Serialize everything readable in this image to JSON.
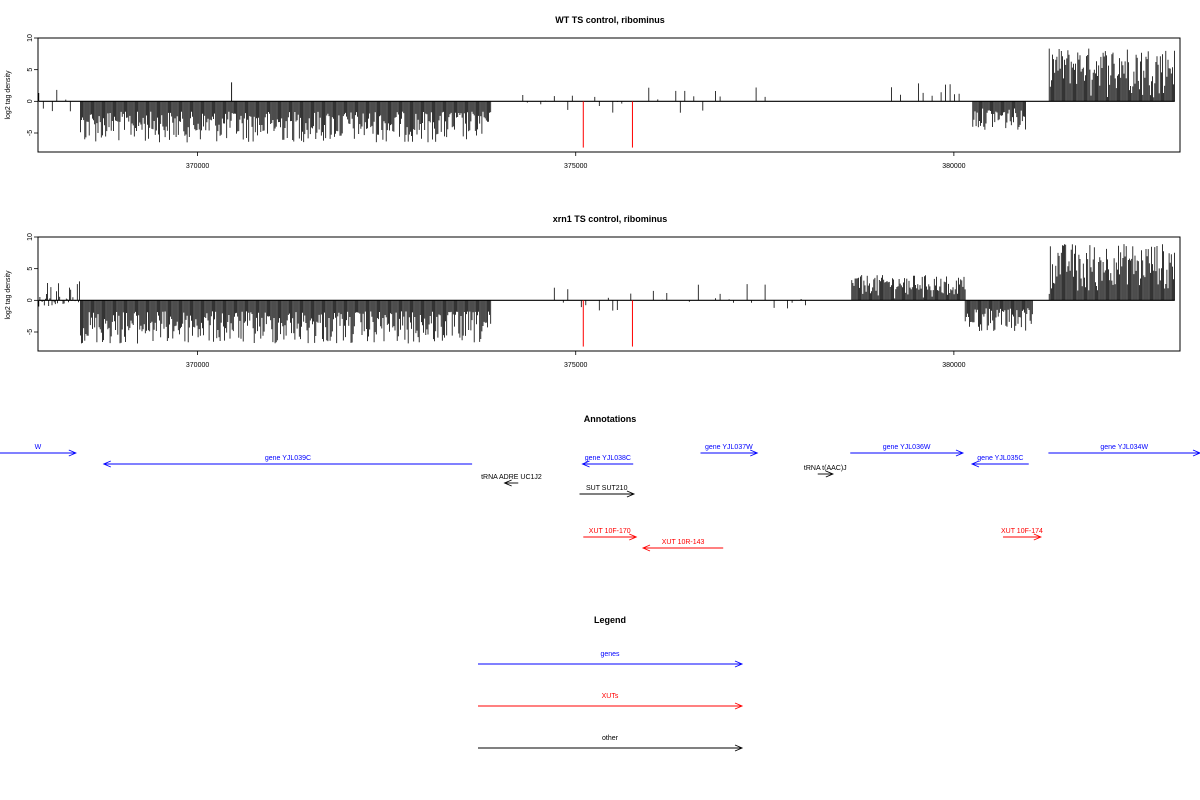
{
  "chart_data": [
    {
      "type": "bar",
      "title": "WT TS control, ribominus",
      "ylabel": "log2 tag density",
      "xlim": [
        367890,
        382990
      ],
      "ylim": [
        -8,
        10
      ],
      "yticks": [
        -5,
        0,
        5,
        10
      ],
      "xticks": [
        370000,
        375000,
        380000
      ],
      "xtick_labels": [
        "370000",
        "375000",
        "380000"
      ],
      "segments": [
        {
          "x_start": 367900,
          "x_end": 368450,
          "kind": "sparse",
          "min": -2,
          "max": 2.5
        },
        {
          "x_start": 368450,
          "x_end": 373880,
          "kind": "dense",
          "min": -6.5,
          "max": 0,
          "peak": {
            "x": 370450,
            "y": 3
          }
        },
        {
          "x_start": 374300,
          "x_end": 376700,
          "kind": "sparse",
          "min": -2,
          "max": 2.5
        },
        {
          "x_start": 376850,
          "x_end": 377550,
          "kind": "sparse",
          "min": 0,
          "max": 2.5
        },
        {
          "x_start": 378820,
          "x_end": 380150,
          "kind": "sparse",
          "min": 0,
          "max": 3
        },
        {
          "x_start": 380250,
          "x_end": 380950,
          "kind": "dense",
          "min": -4.5,
          "max": 0
        },
        {
          "x_start": 381260,
          "x_end": 382920,
          "kind": "dense",
          "min": 0,
          "max": 8.5
        }
      ],
      "red_markers": [
        {
          "x": 375100,
          "y": -7.3
        },
        {
          "x": 375750,
          "y": -7.3
        }
      ]
    },
    {
      "type": "bar",
      "title": "xrn1 TS control, ribominus",
      "ylabel": "log2 tag density",
      "xlim": [
        367890,
        382990
      ],
      "ylim": [
        -8,
        10
      ],
      "yticks": [
        -5,
        0,
        5,
        10
      ],
      "xticks": [
        370000,
        375000,
        380000
      ],
      "xtick_labels": [
        "370000",
        "375000",
        "380000"
      ],
      "segments": [
        {
          "x_start": 367900,
          "x_end": 368450,
          "kind": "dense",
          "min": -1,
          "max": 3
        },
        {
          "x_start": 368450,
          "x_end": 373880,
          "kind": "dense",
          "min": -7,
          "max": 0
        },
        {
          "x_start": 374300,
          "x_end": 376750,
          "kind": "sparse",
          "min": -2.5,
          "max": 2.5
        },
        {
          "x_start": 376850,
          "x_end": 378050,
          "kind": "sparse",
          "min": -1.5,
          "max": 3.5
        },
        {
          "x_start": 378650,
          "x_end": 380150,
          "kind": "dense",
          "min": 0,
          "max": 4
        },
        {
          "x_start": 380150,
          "x_end": 381050,
          "kind": "dense",
          "min": -5,
          "max": 0
        },
        {
          "x_start": 381260,
          "x_end": 382920,
          "kind": "dense",
          "min": 0,
          "max": 9
        }
      ],
      "red_markers": [
        {
          "x": 375100,
          "y": -7.3
        },
        {
          "x": 375750,
          "y": -7.3
        }
      ]
    }
  ],
  "annotations": {
    "title": "Annotations",
    "items": [
      {
        "label": "W",
        "kind": "gene",
        "from": 367300,
        "to": 368390,
        "row": 0
      },
      {
        "label": "gene YJL039C",
        "kind": "gene",
        "from": 373630,
        "to": 368760,
        "row": 1
      },
      {
        "label": "gene YJL038C",
        "kind": "gene",
        "from": 375760,
        "to": 375090,
        "row": 1
      },
      {
        "label": "gene YJL037W",
        "kind": "gene",
        "from": 376650,
        "to": 377400,
        "row": 0
      },
      {
        "label": "gene YJL036W",
        "kind": "gene",
        "from": 378630,
        "to": 380120,
        "row": 0
      },
      {
        "label": "gene YJL035C",
        "kind": "gene",
        "from": 380990,
        "to": 380240,
        "row": 1
      },
      {
        "label": "gene YJL034W",
        "kind": "gene",
        "from": 381250,
        "to": 383550,
        "row": 0
      },
      {
        "label": "tRNA t(AAC)J",
        "kind": "other",
        "from": 378200,
        "to": 378400,
        "row": 2
      },
      {
        "label": "tRNA ADRE UC1J2",
        "kind": "other",
        "from": 374240,
        "to": 374060,
        "row": 3
      },
      {
        "label": "SUT SUT210",
        "kind": "other",
        "from": 375050,
        "to": 375770,
        "row": 4
      },
      {
        "label": "XUT 10F-170",
        "kind": "xut",
        "from": 375100,
        "to": 375800,
        "row": 5
      },
      {
        "label": "XUT 10R-143",
        "kind": "xut",
        "from": 376950,
        "to": 375890,
        "row": 6
      },
      {
        "label": "XUT 10F-174",
        "kind": "xut",
        "from": 380650,
        "to": 381150,
        "row": 5
      }
    ]
  },
  "legend": {
    "title": "Legend",
    "entries": [
      {
        "label": "genes",
        "color": "#0000ff"
      },
      {
        "label": "XUTs",
        "color": "#ff0000"
      },
      {
        "label": "other",
        "color": "#000000"
      }
    ]
  },
  "colors": {
    "gene": "#0000ff",
    "xut": "#ff0000",
    "other": "#000000",
    "bars": "#000000",
    "marker": "#ff0000"
  }
}
